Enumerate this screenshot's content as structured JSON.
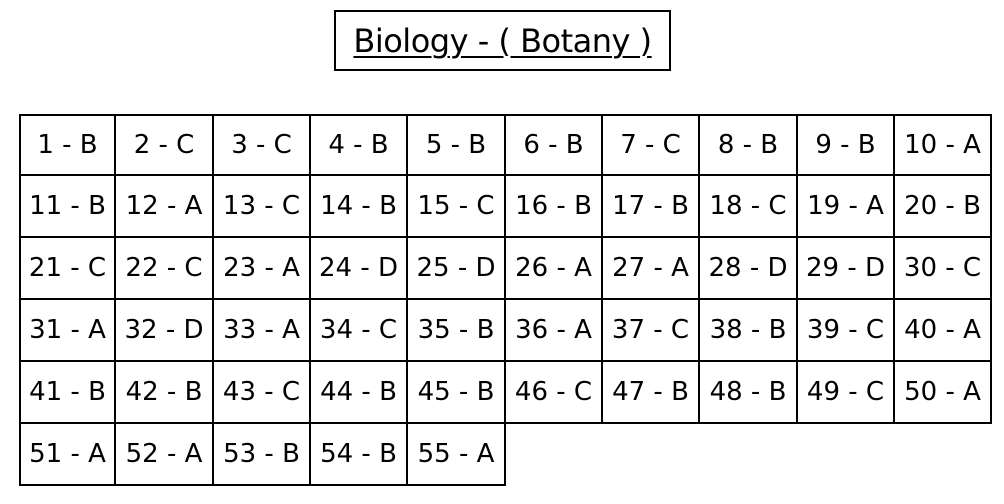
{
  "title": "Biology - ( Botany )",
  "columns_per_row": 10,
  "answers": [
    "1 - B",
    "2 - C",
    "3 - C",
    "4 - B",
    "5 - B",
    "6 - B",
    "7 - C",
    "8 - B",
    "9 - B",
    "10 - A",
    "11 - B",
    "12 - A",
    "13 - C",
    "14 - B",
    "15 - C",
    "16 - B",
    "17 - B",
    "18 - C",
    "19 - A",
    "20 - B",
    "21 - C",
    "22 - C",
    "23 - A",
    "24 - D",
    "25 - D",
    "26 - A",
    "27 - A",
    "28 - D",
    "29 - D",
    "30 - C",
    "31 - A",
    "32 - D",
    "33 - A",
    "34 - C",
    "35 - B",
    "36 - A",
    "37 - C",
    "38 - B",
    "39 - C",
    "40 - A",
    "41 - B",
    "42 - B",
    "43 - C",
    "44 - B",
    "45 - B",
    "46 - C",
    "47 - B",
    "48 - B",
    "49 - C",
    "50 - A",
    "51 - A",
    "52 - A",
    "53 - B",
    "54 - B",
    "55 - A"
  ]
}
